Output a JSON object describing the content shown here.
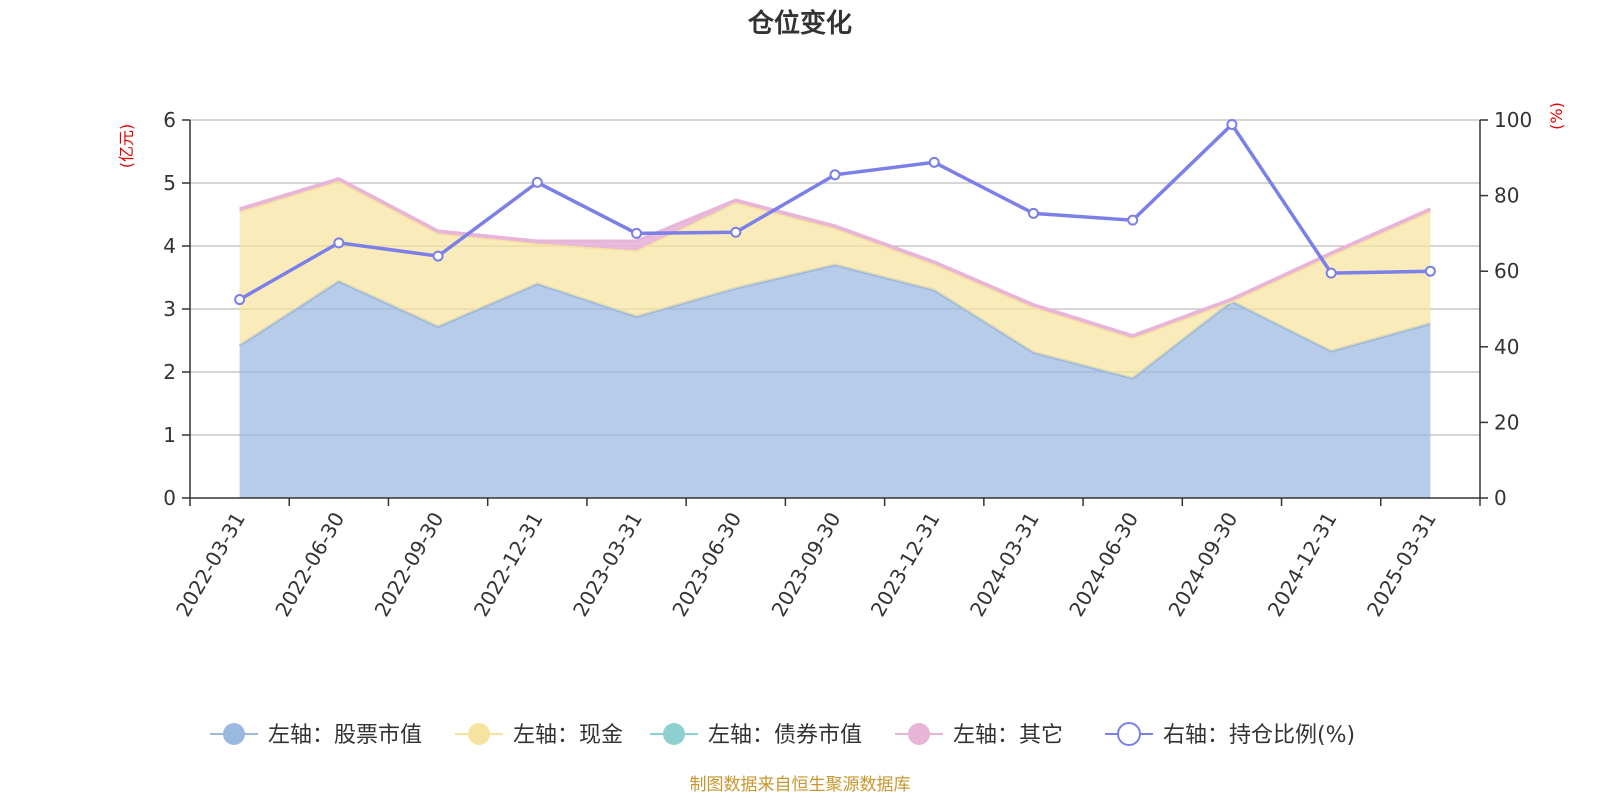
{
  "chart_data": {
    "type": "area",
    "title": "仓位变化",
    "left_unit": "(亿元)",
    "right_unit": "(%)",
    "categories": [
      "2022-03-31",
      "2022-06-30",
      "2022-09-30",
      "2022-12-31",
      "2023-03-31",
      "2023-06-30",
      "2023-09-30",
      "2023-12-31",
      "2024-03-31",
      "2024-06-30",
      "2024-09-30",
      "2024-12-31",
      "2025-03-31"
    ],
    "y_left": {
      "min": 0,
      "max": 6,
      "ticks": [
        "0",
        "1",
        "2",
        "3",
        "4",
        "5",
        "6"
      ]
    },
    "y_right": {
      "min": 0,
      "max": 100,
      "ticks": [
        "0",
        "20",
        "40",
        "60",
        "80",
        "100"
      ]
    },
    "grid": true,
    "legend_position": "bottom",
    "series": [
      {
        "name": "左轴：股票市值",
        "axis": "left",
        "style": "area",
        "color": "#9bb8e0",
        "values": [
          2.42,
          3.44,
          2.72,
          3.4,
          2.88,
          3.33,
          3.7,
          3.3,
          2.31,
          1.9,
          3.12,
          2.33,
          2.77
        ]
      },
      {
        "name": "左轴：现金",
        "axis": "left",
        "style": "area",
        "color": "#f6e3a0",
        "values": [
          2.13,
          1.59,
          1.48,
          0.64,
          1.05,
          1.36,
          0.58,
          0.41,
          0.72,
          0.64,
          0.0,
          1.52,
          1.78
        ]
      },
      {
        "name": "左轴：债券市值",
        "axis": "left",
        "style": "area",
        "color": "#8ecfd0",
        "values": [
          0,
          0,
          0,
          0,
          0,
          0,
          0,
          0,
          0,
          0,
          0,
          0,
          0
        ]
      },
      {
        "name": "左轴：其它",
        "axis": "left",
        "style": "area",
        "color": "#e8b4d8",
        "values": [
          0.04,
          0.04,
          0.04,
          0.04,
          0.15,
          0.04,
          0.04,
          0.04,
          0.04,
          0.04,
          0.04,
          0.04,
          0.04
        ]
      },
      {
        "name": "右轴：持仓比例(%)",
        "axis": "right",
        "style": "line",
        "color": "#7b7fe8",
        "values": [
          52.5,
          67.5,
          64.0,
          83.5,
          70.0,
          70.3,
          85.5,
          88.8,
          75.3,
          73.5,
          98.8,
          59.5,
          60.0
        ]
      }
    ],
    "source": "制图数据来自恒生聚源数据库"
  }
}
